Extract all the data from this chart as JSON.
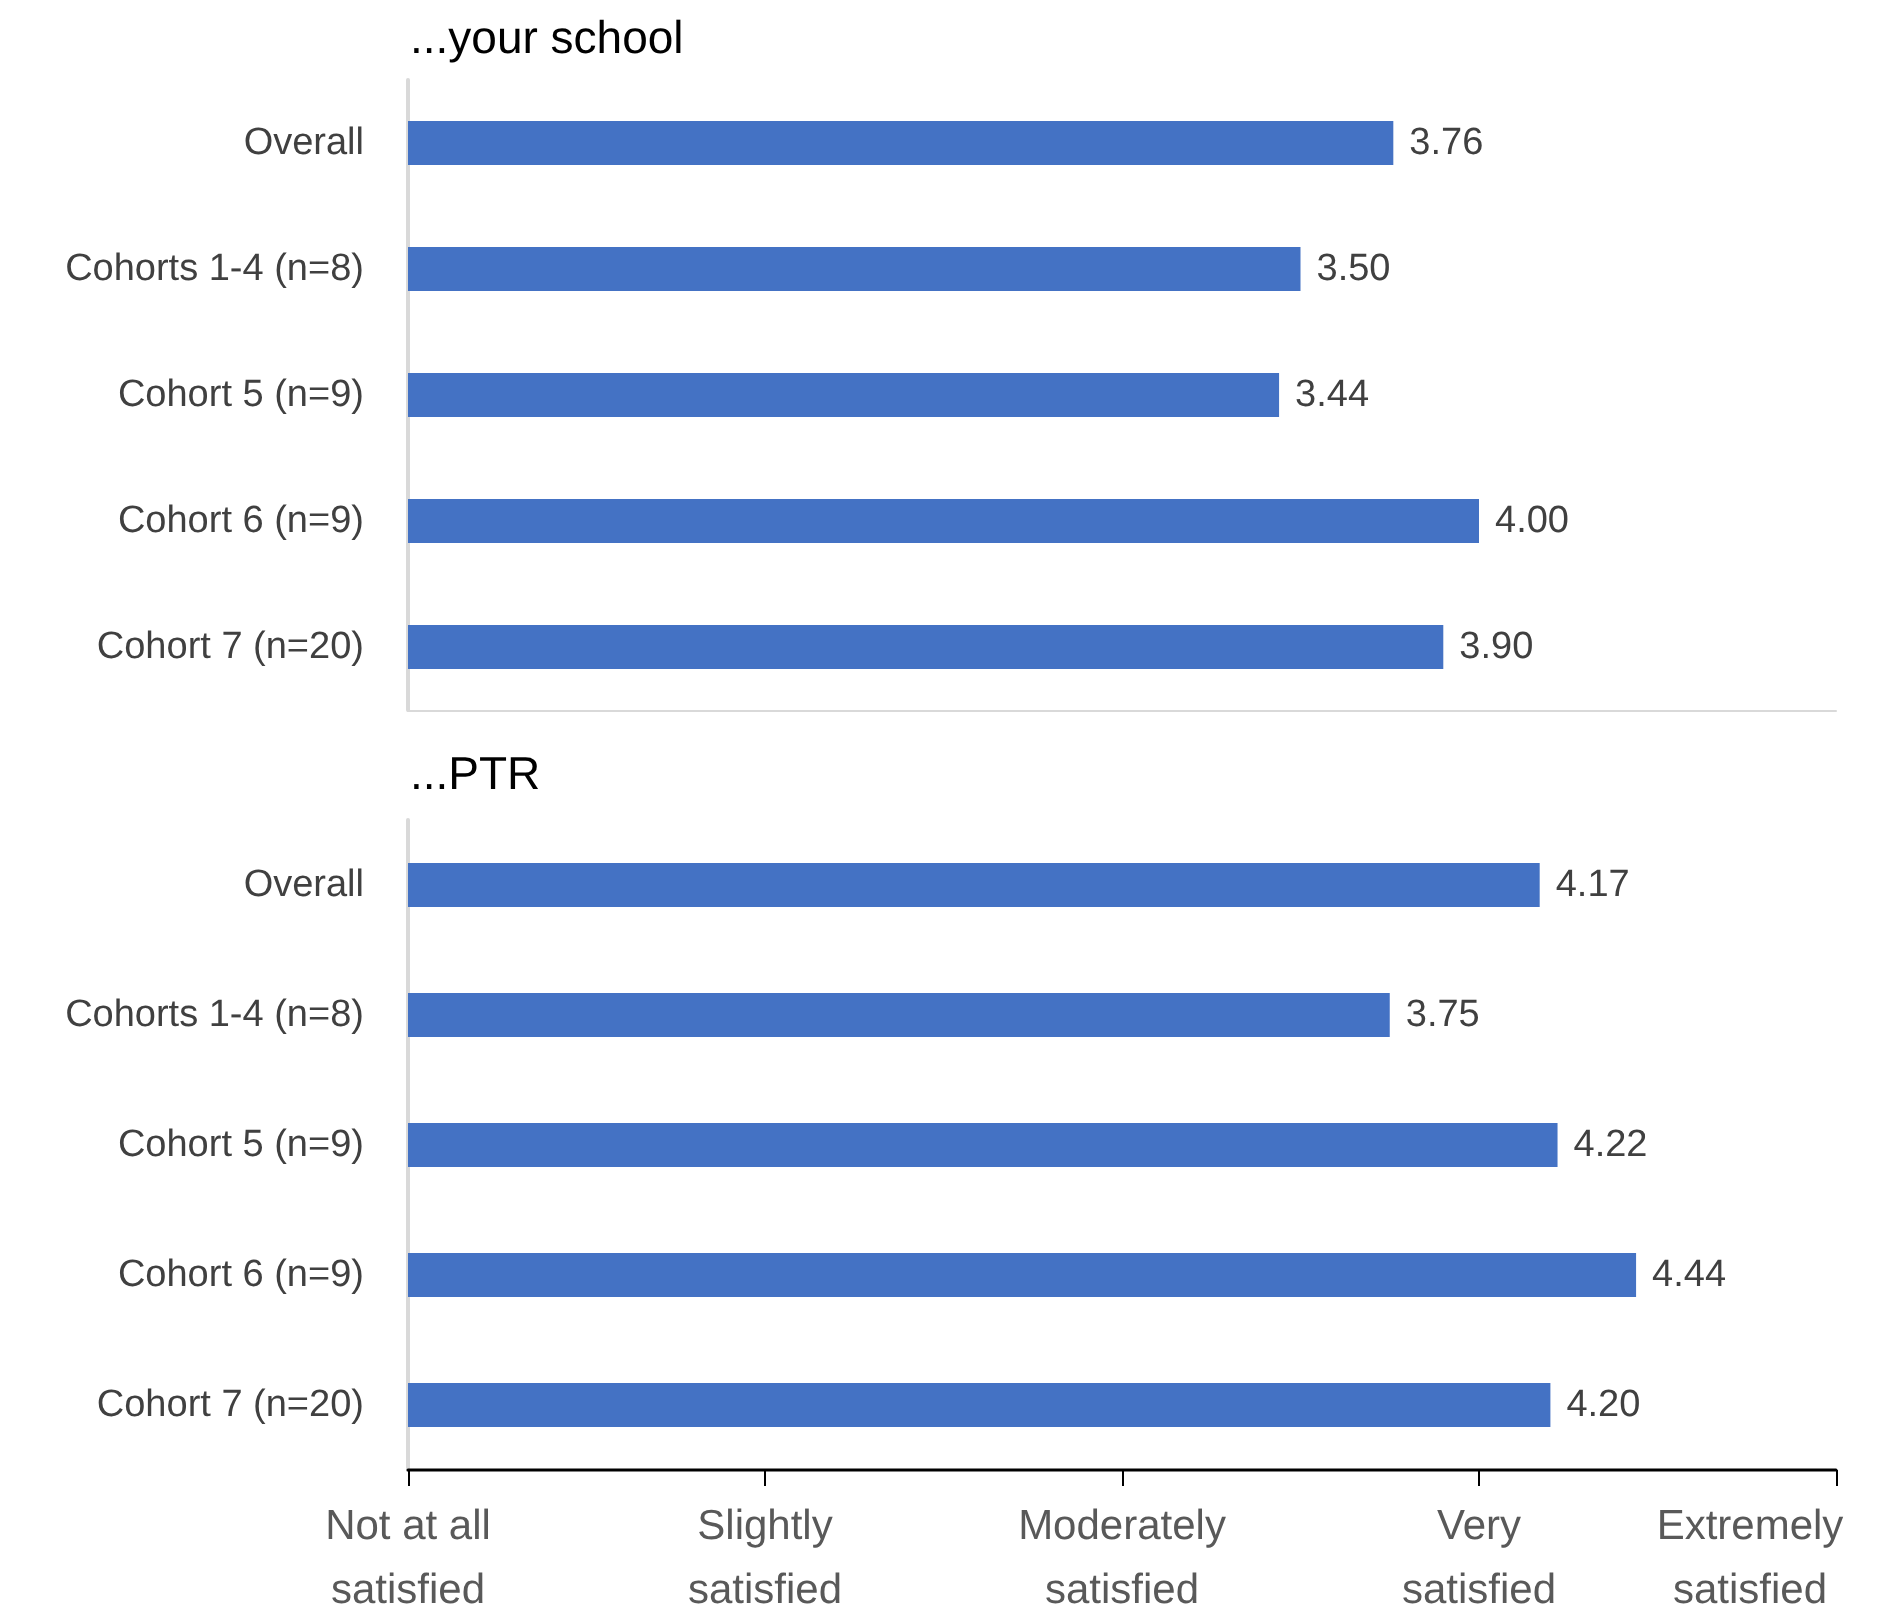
{
  "chart_data": [
    {
      "type": "bar",
      "orientation": "horizontal",
      "title": "...your school",
      "categories": [
        "Overall",
        "Cohorts 1-4 (n=8)",
        "Cohort 5 (n=9)",
        "Cohort 6 (n=9)",
        "Cohort 7 (n=20)"
      ],
      "values": [
        3.76,
        3.5,
        3.44,
        4.0,
        3.9
      ],
      "value_labels": [
        "3.76",
        "3.50",
        "3.44",
        "4.00",
        "3.90"
      ],
      "color": "#4472c4",
      "xlim": [
        1,
        5
      ],
      "tick_labels": "y",
      "grid": false
    },
    {
      "type": "bar",
      "orientation": "horizontal",
      "title": "...PTR",
      "categories": [
        "Overall",
        "Cohorts 1-4 (n=8)",
        "Cohort 5 (n=9)",
        "Cohort 6 (n=9)",
        "Cohort 7 (n=20)"
      ],
      "values": [
        4.17,
        3.75,
        4.22,
        4.44,
        4.2
      ],
      "value_labels": [
        "4.17",
        "3.75",
        "4.22",
        "4.44",
        "4.20"
      ],
      "color": "#4472c4",
      "xlim": [
        1,
        5
      ],
      "xticks": [
        {
          "value": 1,
          "label": null
        },
        {
          "value": 2,
          "label": null
        },
        {
          "value": 3,
          "label": null
        },
        {
          "value": 4,
          "label": null
        },
        {
          "value": 5,
          "label": null
        }
      ],
      "grid": false,
      "annotations": [
        "Not at all\nsatisfied",
        "Slightly\nsatisfied",
        "Moderately\nsatisfied",
        "Very\nsatisfied",
        "Extremely\nsatisfied"
      ]
    }
  ]
}
